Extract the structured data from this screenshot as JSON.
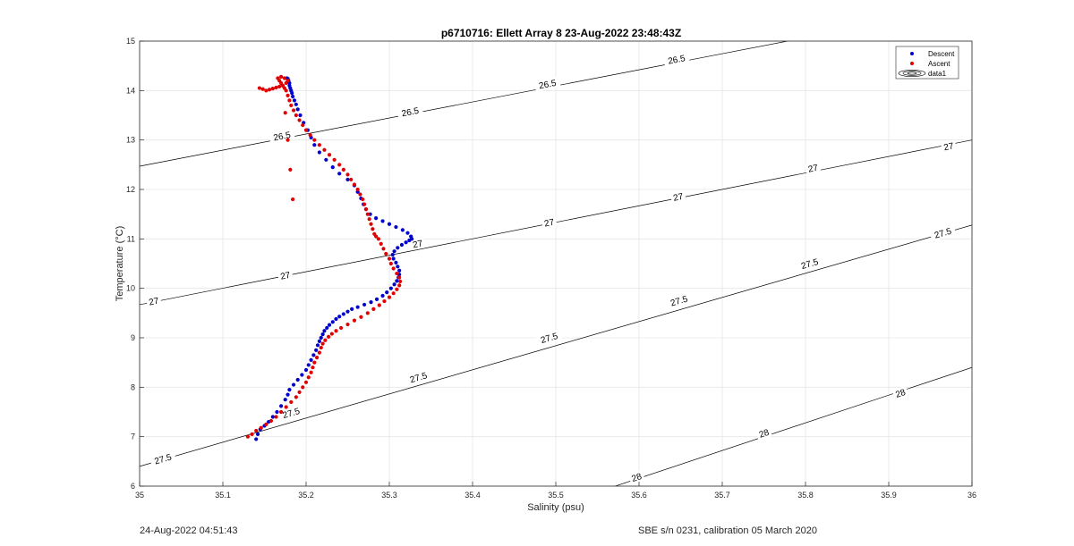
{
  "chart_data": {
    "type": "scatter",
    "title": "p6710716: Ellett Array 8 23-Aug-2022 23:48:43Z",
    "xlabel": "Salinity (psu)",
    "ylabel": "Temperature (°C)",
    "xlim": [
      35,
      36
    ],
    "ylim": [
      6,
      15
    ],
    "xticks": [
      "35",
      "35.1",
      "35.2",
      "35.3",
      "35.4",
      "35.5",
      "35.6",
      "35.7",
      "35.8",
      "35.9",
      "36"
    ],
    "yticks": [
      "6",
      "7",
      "8",
      "9",
      "10",
      "11",
      "12",
      "13",
      "14",
      "15"
    ],
    "grid": true,
    "legend_position": "top-right",
    "legend": [
      "Descent",
      "Ascent",
      "data1"
    ],
    "colors": {
      "descent": "#0000cc",
      "ascent": "#e00000",
      "contour": "#000000"
    },
    "contours": [
      {
        "level": "26.5",
        "points": [
          [
            35.0,
            12.47
          ],
          [
            36.0,
            15.72
          ]
        ],
        "labels": [
          [
            35.171,
            13.08
          ],
          [
            35.325,
            13.57
          ],
          [
            35.49,
            14.13
          ],
          [
            35.645,
            14.63
          ]
        ]
      },
      {
        "level": "27",
        "points": [
          [
            35.0,
            9.67
          ],
          [
            36.0,
            13.0
          ]
        ],
        "labels": [
          [
            35.017,
            9.74
          ],
          [
            35.175,
            10.26
          ],
          [
            35.334,
            10.9
          ],
          [
            35.492,
            11.33
          ],
          [
            35.647,
            11.85
          ],
          [
            35.809,
            12.43
          ],
          [
            35.972,
            12.87
          ]
        ]
      },
      {
        "level": "27.5",
        "points": [
          [
            35.0,
            6.4
          ],
          [
            36.0,
            11.28
          ]
        ],
        "labels": [
          [
            35.028,
            6.55
          ],
          [
            35.182,
            7.48
          ],
          [
            35.335,
            8.2
          ],
          [
            35.492,
            9.0
          ],
          [
            35.648,
            9.75
          ],
          [
            35.805,
            10.5
          ],
          [
            35.965,
            11.12
          ]
        ]
      },
      {
        "level": "28",
        "points": [
          [
            35.55,
            5.88
          ],
          [
            36.0,
            8.4
          ]
        ],
        "labels": [
          [
            35.597,
            6.18
          ],
          [
            35.75,
            7.07
          ],
          [
            35.914,
            7.88
          ]
        ]
      }
    ],
    "series": [
      {
        "name": "Descent",
        "x": [
          35.14,
          35.142,
          35.145,
          35.15,
          35.155,
          35.16,
          35.165,
          35.17,
          35.175,
          35.178,
          35.18,
          35.185,
          35.19,
          35.195,
          35.2,
          35.203,
          35.206,
          35.209,
          35.212,
          35.214,
          35.216,
          35.218,
          35.22,
          35.222,
          35.225,
          35.228,
          35.232,
          35.236,
          35.24,
          35.245,
          35.25,
          35.255,
          35.262,
          35.27,
          35.278,
          35.285,
          35.292,
          35.297,
          35.302,
          35.306,
          35.309,
          35.311,
          35.312,
          35.312,
          35.31,
          35.308,
          35.305,
          35.304,
          35.306,
          35.31,
          35.315,
          35.32,
          35.324,
          35.327,
          35.326,
          35.322,
          35.316,
          35.308,
          35.3,
          35.292,
          35.284,
          35.277,
          35.272,
          35.269,
          35.266,
          35.262,
          35.258,
          35.25,
          35.24,
          35.232,
          35.224,
          35.216,
          35.21,
          35.206,
          35.202,
          35.197,
          35.193,
          35.19,
          35.188,
          35.186,
          35.184,
          35.183,
          35.182,
          35.181,
          35.18,
          35.18,
          35.179,
          35.178,
          35.178,
          35.177
        ],
        "y": [
          6.95,
          7.05,
          7.15,
          7.22,
          7.3,
          7.4,
          7.5,
          7.62,
          7.75,
          7.85,
          7.95,
          8.05,
          8.15,
          8.25,
          8.35,
          8.45,
          8.55,
          8.65,
          8.75,
          8.85,
          8.93,
          9.0,
          9.07,
          9.14,
          9.2,
          9.26,
          9.32,
          9.38,
          9.43,
          9.48,
          9.53,
          9.58,
          9.62,
          9.67,
          9.72,
          9.78,
          9.85,
          9.92,
          10.0,
          10.08,
          10.15,
          10.22,
          10.28,
          10.36,
          10.44,
          10.52,
          10.6,
          10.68,
          10.75,
          10.82,
          10.88,
          10.93,
          10.97,
          11.0,
          11.05,
          11.12,
          11.18,
          11.24,
          11.3,
          11.36,
          11.42,
          11.5,
          11.6,
          11.7,
          11.82,
          11.95,
          12.08,
          12.2,
          12.32,
          12.45,
          12.6,
          12.75,
          12.9,
          13.05,
          13.2,
          13.35,
          13.5,
          13.62,
          13.72,
          13.8,
          13.88,
          13.95,
          14.0,
          14.05,
          14.1,
          14.15,
          14.2,
          14.22,
          14.24,
          14.25
        ]
      },
      {
        "name": "Ascent",
        "x": [
          35.13,
          35.135,
          35.14,
          35.146,
          35.152,
          35.158,
          35.164,
          35.17,
          35.176,
          35.182,
          35.188,
          35.192,
          35.196,
          35.2,
          35.203,
          35.206,
          35.208,
          35.21,
          35.213,
          35.216,
          35.218,
          35.22,
          35.223,
          35.227,
          35.231,
          35.236,
          35.242,
          35.25,
          35.258,
          35.266,
          35.274,
          35.281,
          35.288,
          35.294,
          35.3,
          35.305,
          35.309,
          35.312,
          35.313,
          35.312,
          35.309,
          35.305,
          35.302,
          35.3,
          35.296,
          35.293,
          35.29,
          35.287,
          35.284,
          35.282,
          35.28,
          35.278,
          35.276,
          35.274,
          35.272,
          35.27,
          35.268,
          35.265,
          35.262,
          35.258,
          35.254,
          35.25,
          35.245,
          35.24,
          35.234,
          35.228,
          35.222,
          35.216,
          35.21,
          35.205,
          35.2,
          35.196,
          35.192,
          35.188,
          35.185,
          35.182,
          35.18,
          35.178,
          35.176,
          35.174,
          35.172,
          35.17,
          35.168,
          35.166,
          35.17,
          35.174,
          35.178,
          35.176,
          35.172,
          35.168,
          35.164,
          35.16,
          35.156,
          35.152,
          35.148,
          35.144,
          35.175,
          35.178,
          35.181,
          35.184
        ],
        "y": [
          7.0,
          7.05,
          7.12,
          7.18,
          7.25,
          7.32,
          7.4,
          7.5,
          7.6,
          7.7,
          7.8,
          7.9,
          8.0,
          8.1,
          8.2,
          8.3,
          8.4,
          8.5,
          8.6,
          8.7,
          8.8,
          8.88,
          8.95,
          9.02,
          9.08,
          9.14,
          9.2,
          9.27,
          9.35,
          9.42,
          9.5,
          9.58,
          9.66,
          9.74,
          9.82,
          9.9,
          9.98,
          10.06,
          10.14,
          10.22,
          10.3,
          10.4,
          10.5,
          10.6,
          10.7,
          10.8,
          10.9,
          11.0,
          11.05,
          11.1,
          11.2,
          11.3,
          11.4,
          11.5,
          11.6,
          11.7,
          11.8,
          11.9,
          12.0,
          12.1,
          12.2,
          12.3,
          12.4,
          12.5,
          12.6,
          12.7,
          12.8,
          12.9,
          13.0,
          13.1,
          13.2,
          13.3,
          13.4,
          13.5,
          13.6,
          13.7,
          13.8,
          13.9,
          14.0,
          14.05,
          14.1,
          14.15,
          14.2,
          14.25,
          14.28,
          14.25,
          14.2,
          14.15,
          14.1,
          14.08,
          14.06,
          14.04,
          14.02,
          14.0,
          14.03,
          14.05,
          13.55,
          13.0,
          12.4,
          11.8
        ]
      }
    ]
  },
  "footer": {
    "left": "24-Aug-2022 04:51:43",
    "right": "SBE s/n 0231, calibration 05 March 2020"
  }
}
